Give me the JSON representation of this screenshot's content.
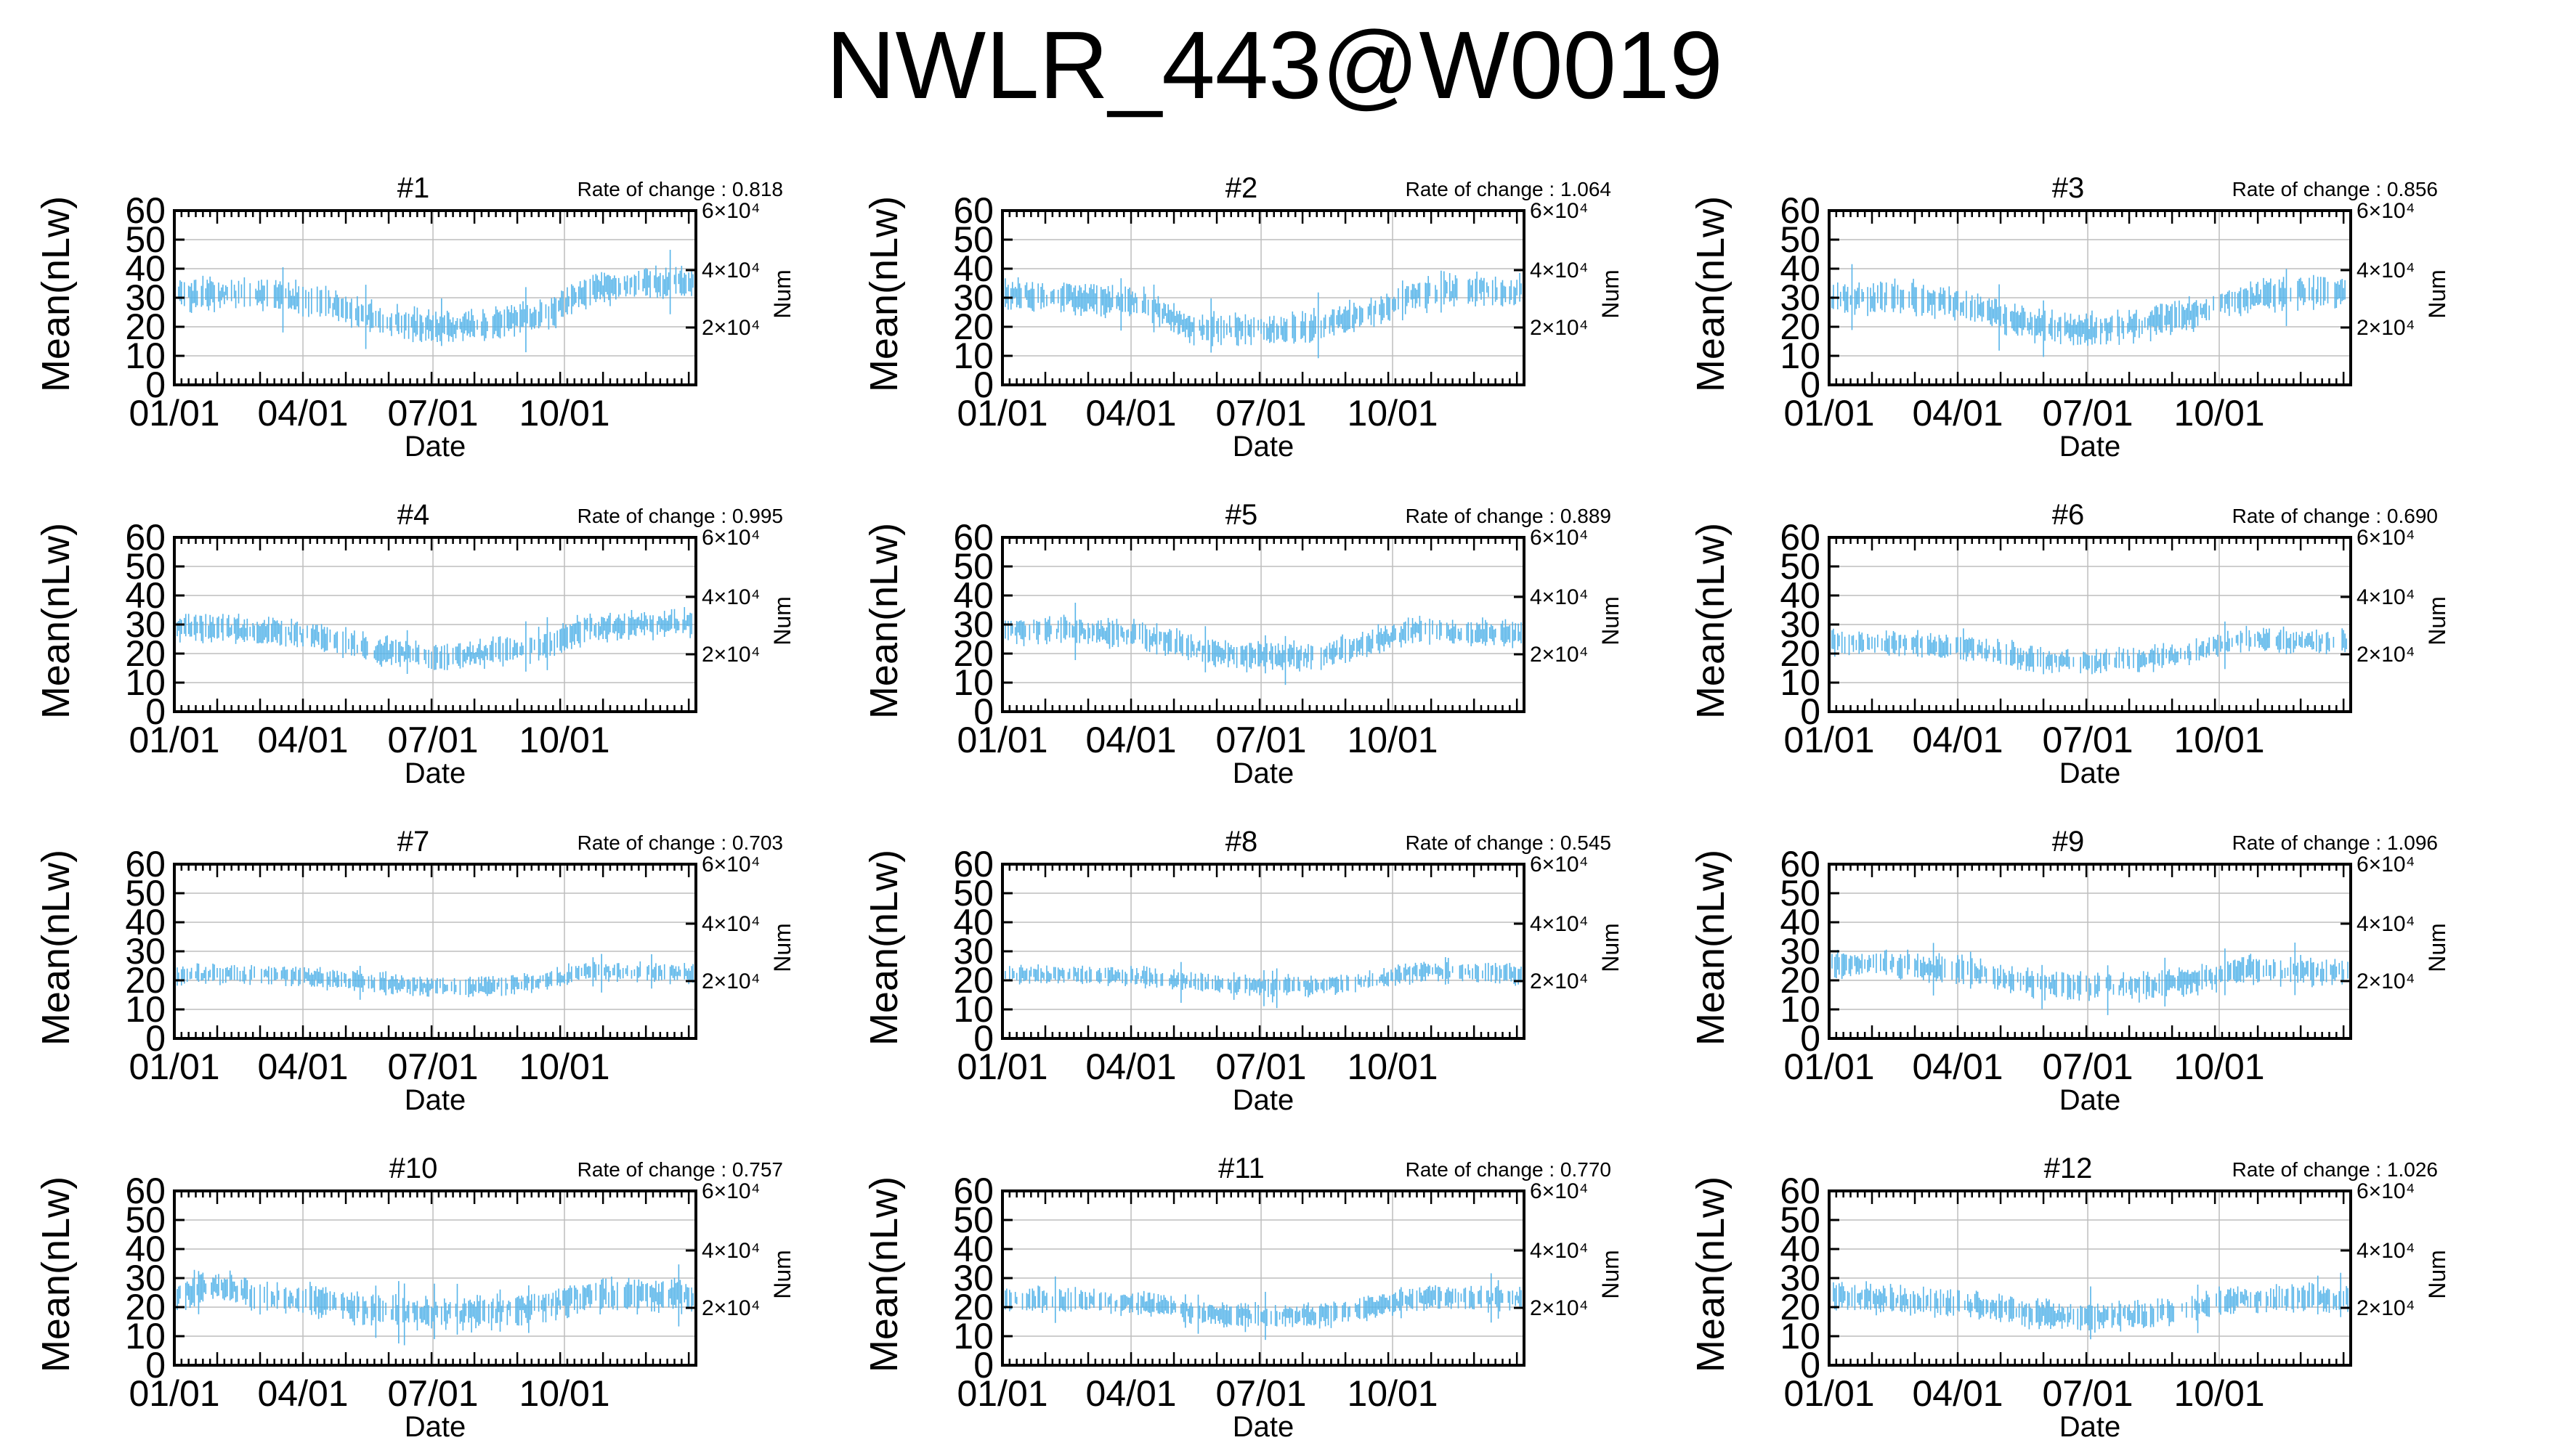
{
  "page_title": "NWLR_443@W0019",
  "colors": {
    "series": "#56b4e9",
    "grid": "#bebebe",
    "axis": "#000000"
  },
  "chart_data": [
    {
      "type": "line",
      "title": "#1",
      "annotation": "Rate of change : 0.818",
      "xlabel": "Date",
      "ylabel": "Mean(nLw)",
      "y2label": "Num",
      "ylim": [
        0,
        60
      ],
      "y2_ticks": [
        "2×10⁴",
        "4×10⁴",
        "6×10⁴"
      ],
      "x_ticks": [
        "01/01",
        "04/01",
        "07/01",
        "10/01"
      ],
      "grid": true,
      "trend": [
        [
          0,
          31
        ],
        [
          60,
          31
        ],
        [
          100,
          29
        ],
        [
          140,
          23
        ],
        [
          180,
          20
        ],
        [
          220,
          21
        ],
        [
          260,
          24
        ],
        [
          290,
          33
        ],
        [
          330,
          35
        ],
        [
          365,
          35
        ]
      ],
      "noise": 4
    },
    {
      "type": "line",
      "title": "#2",
      "annotation": "Rate of change : 1.064",
      "xlabel": "Date",
      "ylabel": "Mean(nLw)",
      "y2label": "Num",
      "ylim": [
        0,
        60
      ],
      "y2_ticks": [
        "2×10⁴",
        "4×10⁴",
        "6×10⁴"
      ],
      "x_ticks": [
        "01/01",
        "04/01",
        "07/01",
        "10/01"
      ],
      "grid": true,
      "trend": [
        [
          0,
          31
        ],
        [
          60,
          30
        ],
        [
          100,
          28
        ],
        [
          130,
          20
        ],
        [
          180,
          19
        ],
        [
          220,
          20
        ],
        [
          260,
          25
        ],
        [
          290,
          31
        ],
        [
          330,
          33
        ],
        [
          365,
          32
        ]
      ],
      "noise": 4
    },
    {
      "type": "line",
      "title": "#3",
      "annotation": "Rate of change : 0.856",
      "xlabel": "Date",
      "ylabel": "Mean(nLw)",
      "y2label": "Num",
      "ylim": [
        0,
        60
      ],
      "y2_ticks": [
        "2×10⁴",
        "4×10⁴",
        "6×10⁴"
      ],
      "x_ticks": [
        "01/01",
        "04/01",
        "07/01",
        "10/01"
      ],
      "grid": true,
      "trend": [
        [
          0,
          30
        ],
        [
          60,
          30
        ],
        [
          100,
          27
        ],
        [
          140,
          21
        ],
        [
          180,
          19
        ],
        [
          220,
          21
        ],
        [
          260,
          25
        ],
        [
          290,
          30
        ],
        [
          330,
          32
        ],
        [
          365,
          32
        ]
      ],
      "noise": 4
    },
    {
      "type": "line",
      "title": "#4",
      "annotation": "Rate of change : 0.995",
      "xlabel": "Date",
      "ylabel": "Mean(nLw)",
      "y2label": "Num",
      "ylim": [
        0,
        60
      ],
      "y2_ticks": [
        "2×10⁴",
        "4×10⁴",
        "6×10⁴"
      ],
      "x_ticks": [
        "01/01",
        "04/01",
        "07/01",
        "10/01"
      ],
      "grid": true,
      "trend": [
        [
          0,
          29
        ],
        [
          60,
          28
        ],
        [
          100,
          26
        ],
        [
          140,
          21
        ],
        [
          180,
          19
        ],
        [
          220,
          20
        ],
        [
          260,
          23
        ],
        [
          290,
          29
        ],
        [
          330,
          30
        ],
        [
          365,
          31
        ]
      ],
      "noise": 3.5
    },
    {
      "type": "line",
      "title": "#5",
      "annotation": "Rate of change : 0.889",
      "xlabel": "Date",
      "ylabel": "Mean(nLw)",
      "y2label": "Num",
      "ylim": [
        0,
        60
      ],
      "y2_ticks": [
        "2×10⁴",
        "4×10⁴",
        "6×10⁴"
      ],
      "x_ticks": [
        "01/01",
        "04/01",
        "07/01",
        "10/01"
      ],
      "grid": true,
      "trend": [
        [
          0,
          28
        ],
        [
          60,
          28
        ],
        [
          100,
          26
        ],
        [
          140,
          21
        ],
        [
          180,
          19
        ],
        [
          220,
          19
        ],
        [
          260,
          24
        ],
        [
          290,
          28
        ],
        [
          330,
          27
        ],
        [
          365,
          27
        ]
      ],
      "noise": 3.5
    },
    {
      "type": "line",
      "title": "#6",
      "annotation": "Rate of change : 0.690",
      "xlabel": "Date",
      "ylabel": "Mean(nLw)",
      "y2label": "Num",
      "ylim": [
        0,
        60
      ],
      "y2_ticks": [
        "2×10⁴",
        "4×10⁴",
        "6×10⁴"
      ],
      "x_ticks": [
        "01/01",
        "04/01",
        "07/01",
        "10/01"
      ],
      "grid": true,
      "trend": [
        [
          0,
          24
        ],
        [
          60,
          23
        ],
        [
          100,
          22
        ],
        [
          140,
          18
        ],
        [
          180,
          17
        ],
        [
          220,
          18
        ],
        [
          260,
          21
        ],
        [
          290,
          25
        ],
        [
          330,
          24
        ],
        [
          365,
          24
        ]
      ],
      "noise": 3
    },
    {
      "type": "line",
      "title": "#7",
      "annotation": "Rate of change : 0.703",
      "xlabel": "Date",
      "ylabel": "Mean(nLw)",
      "y2label": "Num",
      "ylim": [
        0,
        60
      ],
      "y2_ticks": [
        "2×10⁴",
        "4×10⁴",
        "6×10⁴"
      ],
      "x_ticks": [
        "01/01",
        "04/01",
        "07/01",
        "10/01"
      ],
      "grid": true,
      "trend": [
        [
          0,
          22
        ],
        [
          60,
          22
        ],
        [
          100,
          21
        ],
        [
          140,
          19
        ],
        [
          180,
          18
        ],
        [
          220,
          18
        ],
        [
          260,
          20
        ],
        [
          290,
          23
        ],
        [
          330,
          23
        ],
        [
          365,
          22
        ]
      ],
      "noise": 2.5
    },
    {
      "type": "line",
      "title": "#8",
      "annotation": "Rate of change : 0.545",
      "xlabel": "Date",
      "ylabel": "Mean(nLw)",
      "y2label": "Num",
      "ylim": [
        0,
        60
      ],
      "y2_ticks": [
        "2×10⁴",
        "4×10⁴",
        "6×10⁴"
      ],
      "x_ticks": [
        "01/01",
        "04/01",
        "07/01",
        "10/01"
      ],
      "grid": true,
      "trend": [
        [
          0,
          22
        ],
        [
          60,
          22
        ],
        [
          100,
          21
        ],
        [
          140,
          19
        ],
        [
          180,
          18
        ],
        [
          220,
          18
        ],
        [
          260,
          20
        ],
        [
          290,
          23
        ],
        [
          330,
          23
        ],
        [
          365,
          22
        ]
      ],
      "noise": 2.5
    },
    {
      "type": "line",
      "title": "#9",
      "annotation": "Rate of change : 1.096",
      "xlabel": "Date",
      "ylabel": "Mean(nLw)",
      "y2label": "Num",
      "ylim": [
        0,
        60
      ],
      "y2_ticks": [
        "2×10⁴",
        "4×10⁴",
        "6×10⁴"
      ],
      "x_ticks": [
        "01/01",
        "04/01",
        "07/01",
        "10/01"
      ],
      "grid": true,
      "trend": [
        [
          0,
          26
        ],
        [
          60,
          25
        ],
        [
          100,
          23
        ],
        [
          140,
          19
        ],
        [
          180,
          18
        ],
        [
          220,
          18
        ],
        [
          260,
          20
        ],
        [
          290,
          24
        ],
        [
          330,
          23
        ],
        [
          365,
          23
        ]
      ],
      "noise": 3.5
    },
    {
      "type": "line",
      "title": "#10",
      "annotation": "Rate of change : 0.757",
      "xlabel": "Date",
      "ylabel": "Mean(nLw)",
      "y2label": "Num",
      "ylim": [
        0,
        60
      ],
      "y2_ticks": [
        "2×10⁴",
        "4×10⁴",
        "6×10⁴"
      ],
      "x_ticks": [
        "01/01",
        "04/01",
        "07/01",
        "10/01"
      ],
      "grid": true,
      "trend": [
        [
          0,
          24
        ],
        [
          30,
          27
        ],
        [
          60,
          24
        ],
        [
          100,
          22
        ],
        [
          140,
          19
        ],
        [
          180,
          18
        ],
        [
          220,
          18
        ],
        [
          260,
          21
        ],
        [
          290,
          24
        ],
        [
          330,
          24
        ],
        [
          365,
          24
        ]
      ],
      "noise": 4
    },
    {
      "type": "line",
      "title": "#11",
      "annotation": "Rate of change : 0.770",
      "xlabel": "Date",
      "ylabel": "Mean(nLw)",
      "y2label": "Num",
      "ylim": [
        0,
        60
      ],
      "y2_ticks": [
        "2×10⁴",
        "4×10⁴",
        "6×10⁴"
      ],
      "x_ticks": [
        "01/01",
        "04/01",
        "07/01",
        "10/01"
      ],
      "grid": true,
      "trend": [
        [
          0,
          23
        ],
        [
          60,
          22
        ],
        [
          100,
          21
        ],
        [
          140,
          18
        ],
        [
          180,
          17
        ],
        [
          220,
          17
        ],
        [
          260,
          20
        ],
        [
          290,
          23
        ],
        [
          330,
          23
        ],
        [
          365,
          23
        ]
      ],
      "noise": 3
    },
    {
      "type": "line",
      "title": "#12",
      "annotation": "Rate of change : 1.026",
      "xlabel": "Date",
      "ylabel": "Mean(nLw)",
      "y2label": "Num",
      "ylim": [
        0,
        60
      ],
      "y2_ticks": [
        "2×10⁴",
        "4×10⁴",
        "6×10⁴"
      ],
      "x_ticks": [
        "01/01",
        "04/01",
        "07/01",
        "10/01"
      ],
      "grid": true,
      "trend": [
        [
          0,
          24
        ],
        [
          60,
          22
        ],
        [
          100,
          21
        ],
        [
          140,
          18
        ],
        [
          180,
          17
        ],
        [
          220,
          17
        ],
        [
          260,
          20
        ],
        [
          290,
          23
        ],
        [
          330,
          23
        ],
        [
          365,
          23
        ]
      ],
      "noise": 3.5
    }
  ]
}
